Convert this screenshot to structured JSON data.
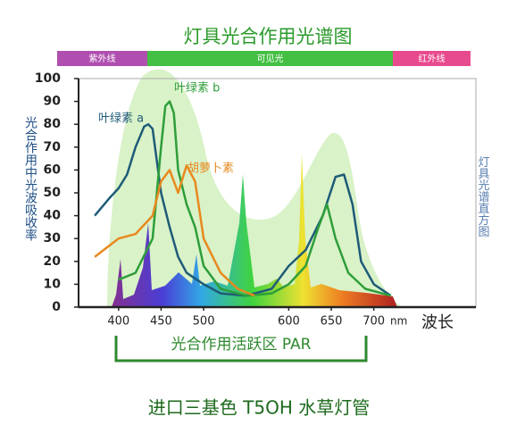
{
  "chart_data": {
    "type": "line",
    "title": "灯具光合作用光谱图",
    "bands": [
      {
        "name": "紫外线",
        "color": "#b04fb0"
      },
      {
        "name": "可见光",
        "color": "#43c043"
      },
      {
        "name": "红外线",
        "color": "#e84a8e"
      }
    ],
    "y_label": "光合作用中光波吸收率",
    "right_label": "灯具光谱直方图",
    "x_label": "波长",
    "x_unit": "nm",
    "par_label": "光合作用活跃区 PAR",
    "footer": "进口三基色 T5OH 水草灯管",
    "xlim": [
      353,
      820
    ],
    "xticks": [
      400,
      450,
      500,
      600,
      650,
      700
    ],
    "ylim": [
      0,
      100
    ],
    "yticks": [
      0,
      10,
      20,
      30,
      40,
      50,
      60,
      70,
      80,
      90,
      100
    ],
    "series": [
      {
        "name": "叶绿素 a",
        "color": "#1e5b78",
        "x": [
          372,
          390,
          400,
          410,
          420,
          430,
          435,
          440,
          450,
          460,
          470,
          480,
          500,
          520,
          550,
          580,
          600,
          620,
          640,
          655,
          665,
          675,
          685,
          700,
          720
        ],
        "values": [
          40,
          48,
          52,
          58,
          70,
          79,
          80,
          78,
          50,
          35,
          22,
          15,
          10,
          6,
          5,
          8,
          18,
          25,
          40,
          57,
          58,
          45,
          20,
          10,
          5
        ]
      },
      {
        "name": "叶绿素 b",
        "color": "#2e9e3a",
        "x": [
          400,
          420,
          440,
          450,
          455,
          460,
          465,
          470,
          480,
          490,
          500,
          520,
          550,
          580,
          600,
          620,
          635,
          645,
          655,
          670,
          690,
          720
        ],
        "values": [
          12,
          15,
          30,
          70,
          88,
          90,
          85,
          60,
          45,
          35,
          18,
          8,
          5,
          6,
          10,
          18,
          35,
          45,
          30,
          15,
          8,
          5
        ]
      },
      {
        "name": "胡萝卜素",
        "color": "#e8891e",
        "x": [
          372,
          400,
          420,
          440,
          450,
          460,
          470,
          480,
          490,
          500,
          520,
          540,
          560
        ],
        "values": [
          22,
          30,
          32,
          40,
          55,
          60,
          50,
          62,
          55,
          30,
          15,
          8,
          5
        ]
      }
    ]
  }
}
